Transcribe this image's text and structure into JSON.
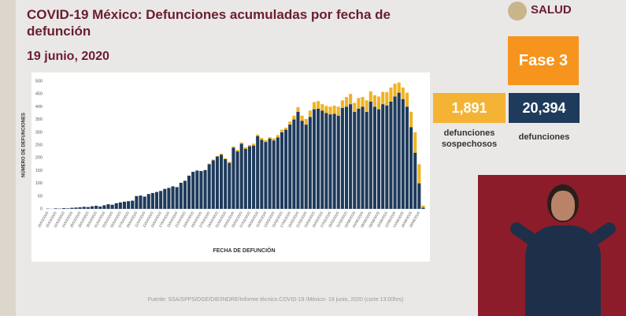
{
  "header": {
    "title": "COVID-19 México: Defunciones acumuladas por fecha de defunción",
    "date": "19 junio, 2020",
    "logo": "SALUD"
  },
  "chart_data": {
    "type": "bar",
    "stacked": true,
    "y_label": "NÚMERO DE DEFUNCIONES",
    "x_label": "FECHA DE DEFUNCIÓN",
    "categories": [
      "18/03/2020",
      null,
      "20/03/2020",
      null,
      "22/03/2020",
      null,
      "24/03/2020",
      null,
      "26/03/2020",
      null,
      "28/03/2020",
      null,
      "30/03/2020",
      null,
      "01/04/2020",
      null,
      "03/04/2020",
      null,
      "05/04/2020",
      null,
      "07/04/2020",
      null,
      "09/04/2020",
      null,
      "11/04/2020",
      null,
      "13/04/2020",
      null,
      "15/04/2020",
      null,
      "17/04/2020",
      null,
      "19/04/2020",
      null,
      "21/04/2020",
      null,
      "23/04/2020",
      null,
      "25/04/2020",
      null,
      "27/04/2020",
      null,
      "29/04/2020",
      null,
      "01/05/2020",
      null,
      "03/05/2020",
      null,
      "05/05/2020",
      null,
      "07/05/2020",
      null,
      "09/05/2020",
      null,
      "11/05/2020",
      null,
      "13/05/2020",
      null,
      "15/05/2020",
      null,
      "17/05/2020",
      null,
      "19/05/2020",
      null,
      "21/05/2020",
      null,
      "23/05/2020",
      null,
      "25/05/2020",
      null,
      "27/05/2020",
      null,
      "29/05/2020",
      null,
      "31/05/2020",
      null,
      "02/06/2020",
      null,
      "04/06/2020",
      null,
      "06/06/2020",
      null,
      "08/06/2020",
      null,
      "10/06/2020",
      null,
      "12/06/2020",
      null,
      "14/06/2020",
      null,
      "16/06/2020",
      null,
      "18/06/2020",
      null
    ],
    "series": [
      {
        "color": "#1f3b5c",
        "values": [
          1,
          0,
          2,
          1,
          3,
          2,
          4,
          5,
          6,
          8,
          7,
          10,
          12,
          9,
          14,
          18,
          16,
          22,
          25,
          28,
          30,
          32,
          50,
          52,
          48,
          58,
          62,
          66,
          70,
          78,
          82,
          88,
          85,
          102,
          110,
          130,
          145,
          150,
          148,
          152,
          175,
          190,
          205,
          212,
          195,
          180,
          240,
          225,
          255,
          235,
          245,
          248,
          285,
          270,
          262,
          275,
          268,
          280,
          300,
          310,
          330,
          350,
          380,
          345,
          330,
          360,
          390,
          392,
          385,
          375,
          370,
          372,
          365,
          395,
          400,
          410,
          380,
          392,
          400,
          380,
          420,
          400,
          390,
          410,
          405,
          420,
          440,
          455,
          430,
          400,
          320,
          220,
          100,
          5
        ]
      },
      {
        "color": "#f0b323",
        "values": [
          0,
          0,
          0,
          0,
          0,
          0,
          0,
          0,
          0,
          0,
          0,
          0,
          0,
          0,
          0,
          0,
          0,
          0,
          0,
          0,
          0,
          0,
          0,
          0,
          0,
          0,
          0,
          0,
          0,
          0,
          0,
          0,
          0,
          0,
          0,
          0,
          0,
          0,
          0,
          0,
          2,
          3,
          2,
          4,
          3,
          5,
          4,
          6,
          5,
          6,
          5,
          7,
          6,
          8,
          7,
          6,
          8,
          9,
          10,
          8,
          12,
          15,
          18,
          20,
          22,
          25,
          28,
          30,
          25,
          28,
          30,
          32,
          35,
          30,
          38,
          40,
          35,
          42,
          38,
          45,
          40,
          45,
          50,
          48,
          52,
          55,
          50,
          40,
          45,
          55,
          60,
          80,
          75,
          8
        ]
      }
    ],
    "ylim": [
      0,
      500
    ],
    "yticks": [
      0,
      50,
      100,
      150,
      200,
      250,
      300,
      350,
      400,
      450,
      500
    ],
    "grid": false
  },
  "panel": {
    "phase": "Fase 3",
    "suspected_value": "1,891",
    "suspected_label": "defunciones sospechosos",
    "confirmed_value": "20,394",
    "confirmed_label": "defunciones"
  },
  "source": "Fuente: SSA/SPPS/DGE/DIE/INDRE/Informe técnico.COVID-19 /México- 19 junio, 2020 (corte 13:00hrs)"
}
